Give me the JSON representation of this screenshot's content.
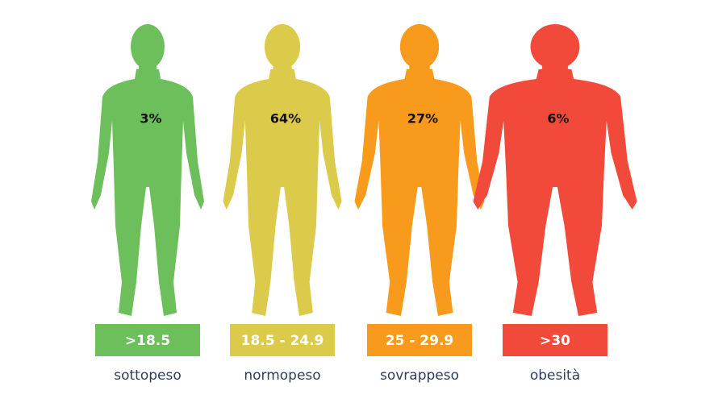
{
  "items": [
    {
      "percent": "3%",
      "range": ">18.5",
      "label": "sottopeso",
      "color": "#6cbf5a"
    },
    {
      "percent": "64%",
      "range": "18.5 - 24.9",
      "label": "normopeso",
      "color": "#dccb4a"
    },
    {
      "percent": "27%",
      "range": "25 - 29.9",
      "label": "sovrappeso",
      "color": "#f89a1c"
    },
    {
      "percent": "6%",
      "range": ">30",
      "label": "obesità",
      "color": "#f24a3a"
    }
  ]
}
